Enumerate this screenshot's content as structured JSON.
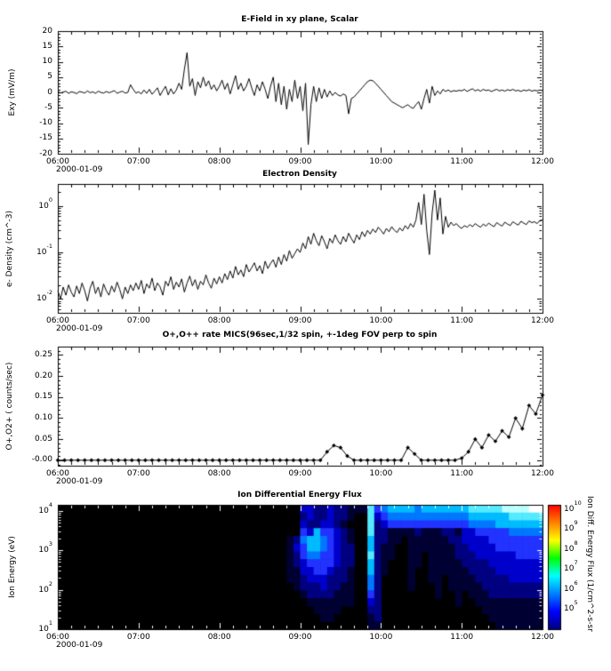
{
  "figure": {
    "background": "#ffffff",
    "axis_color": "#000000",
    "line_color": "#000000"
  },
  "chart_data": [
    {
      "type": "line",
      "title": "E-Field in xy plane, Scalar",
      "ylabel": "Exy (mV/m)",
      "date": "2000-01-09",
      "x_ticks": [
        "06:00",
        "07:00",
        "08:00",
        "09:00",
        "10:00",
        "11:00",
        "12:00"
      ],
      "x_range_minutes": [
        0,
        360
      ],
      "x_step_min": 2,
      "ylim": [
        -20,
        20
      ],
      "y_minor": 1,
      "y_ticks": [
        {
          "label": "20",
          "v": 20
        },
        {
          "label": "15",
          "v": 15
        },
        {
          "label": "10",
          "v": 10
        },
        {
          "label": "5",
          "v": 5
        },
        {
          "label": "0",
          "v": 0
        },
        {
          "label": "-5",
          "v": -5
        },
        {
          "label": "-10",
          "v": -10
        },
        {
          "label": "-15",
          "v": -15
        },
        {
          "label": "-20",
          "v": -20
        }
      ],
      "values": [
        0.3,
        -0.2,
        0.1,
        0.4,
        -0.3,
        0.2,
        0,
        -0.4,
        0.3,
        0.1,
        -0.2,
        0.5,
        -0.1,
        0.2,
        -0.3,
        0.4,
        0,
        -0.2,
        0.3,
        -0.1,
        0.2,
        0.6,
        -0.3,
        0.1,
        0.4,
        -0.2,
        0,
        2.5,
        1,
        -0.2,
        0.2,
        -0.5,
        0.8,
        -0.3,
        1,
        -0.6,
        0.4,
        1.5,
        -1,
        0.6,
        2,
        -0.8,
        1.2,
        -0.5,
        0.8,
        3,
        1,
        7.5,
        13,
        2,
        4.5,
        -1,
        3.5,
        1.5,
        5,
        2,
        3.8,
        1,
        2.5,
        0.5,
        2,
        4,
        1,
        3,
        -0.5,
        2.5,
        5.5,
        1,
        3,
        0.5,
        2,
        4.5,
        1.5,
        -1,
        2.5,
        0.5,
        3.5,
        1,
        -2,
        2,
        5,
        -3,
        3,
        -4,
        2,
        -5.5,
        1,
        -3,
        4,
        -2,
        2,
        -6,
        3,
        -17,
        -4,
        2,
        -3,
        1.5,
        -2,
        1,
        -1.5,
        0.5,
        -1,
        0,
        -0.8,
        -1.2,
        -0.5,
        -1,
        -7,
        -2,
        -1.5,
        -0.5,
        0.5,
        1.5,
        2.5,
        3.5,
        4,
        3.8,
        3,
        2,
        1,
        0,
        -1,
        -2,
        -3,
        -3.5,
        -4,
        -4.5,
        -5,
        -4.5,
        -4,
        -4.8,
        -5.2,
        -4,
        -3,
        -5.5,
        -2,
        1,
        -3.5,
        2,
        -1,
        0.5,
        -0.5,
        1,
        0.3,
        0.8,
        0.2,
        0.6,
        0.4,
        0.7,
        0.5,
        1,
        0.3,
        0.8,
        1.2,
        0.5,
        0.9,
        0.4,
        1,
        0.6,
        0.8,
        0.3,
        0.7,
        1,
        0.5,
        0.8,
        0.4,
        0.9,
        0.6,
        1,
        0.5,
        0.7,
        0.3,
        0.8,
        0.5,
        0.9,
        0.4,
        0.7,
        0.5,
        0.8,
        0.6
      ]
    },
    {
      "type": "line",
      "yscale": "log",
      "title": "Electron Density",
      "ylabel": "e- Density (cm^-3)",
      "date": "2000-01-09",
      "x_ticks": [
        "06:00",
        "07:00",
        "08:00",
        "09:00",
        "10:00",
        "11:00",
        "12:00"
      ],
      "x_range_minutes": [
        0,
        360
      ],
      "x_step_min": 2,
      "ylim": [
        0.005,
        3
      ],
      "y_ticks_exp": [
        -2,
        -1,
        0
      ],
      "values": [
        0.015,
        0.01,
        0.018,
        0.012,
        0.02,
        0.014,
        0.011,
        0.019,
        0.013,
        0.022,
        0.015,
        0.009,
        0.017,
        0.024,
        0.013,
        0.018,
        0.011,
        0.021,
        0.015,
        0.012,
        0.019,
        0.014,
        0.023,
        0.016,
        0.01,
        0.018,
        0.013,
        0.02,
        0.015,
        0.022,
        0.016,
        0.025,
        0.013,
        0.021,
        0.017,
        0.028,
        0.015,
        0.022,
        0.018,
        0.012,
        0.024,
        0.019,
        0.03,
        0.016,
        0.023,
        0.018,
        0.027,
        0.014,
        0.022,
        0.031,
        0.019,
        0.026,
        0.016,
        0.024,
        0.02,
        0.033,
        0.022,
        0.017,
        0.028,
        0.021,
        0.03,
        0.022,
        0.035,
        0.026,
        0.04,
        0.028,
        0.05,
        0.033,
        0.042,
        0.03,
        0.055,
        0.038,
        0.047,
        0.06,
        0.04,
        0.052,
        0.035,
        0.065,
        0.045,
        0.058,
        0.07,
        0.048,
        0.08,
        0.055,
        0.09,
        0.065,
        0.11,
        0.075,
        0.095,
        0.12,
        0.1,
        0.16,
        0.12,
        0.22,
        0.15,
        0.26,
        0.18,
        0.14,
        0.23,
        0.17,
        0.12,
        0.2,
        0.16,
        0.24,
        0.18,
        0.15,
        0.22,
        0.17,
        0.26,
        0.2,
        0.16,
        0.24,
        0.19,
        0.28,
        0.22,
        0.3,
        0.25,
        0.32,
        0.27,
        0.35,
        0.3,
        0.25,
        0.33,
        0.28,
        0.36,
        0.3,
        0.27,
        0.34,
        0.29,
        0.38,
        0.32,
        0.42,
        0.35,
        0.5,
        1.2,
        0.4,
        1.8,
        0.3,
        0.09,
        0.7,
        2.2,
        0.5,
        1.5,
        0.25,
        0.6,
        0.35,
        0.45,
        0.38,
        0.42,
        0.36,
        0.33,
        0.38,
        0.35,
        0.4,
        0.36,
        0.42,
        0.38,
        0.35,
        0.41,
        0.37,
        0.43,
        0.39,
        0.36,
        0.44,
        0.4,
        0.37,
        0.45,
        0.41,
        0.38,
        0.46,
        0.42,
        0.39,
        0.47,
        0.43,
        0.4,
        0.48,
        0.44,
        0.46,
        0.42,
        0.49,
        0.5
      ]
    },
    {
      "type": "line",
      "marker": "diamond",
      "title": "O+,O++ rate MICS(96sec,1/32 spin, +-1deg FOV perp to spin",
      "ylabel": "O+,O2+ ( counts/sec)",
      "date": "2000-01-09",
      "x_ticks": [
        "06:00",
        "07:00",
        "08:00",
        "09:00",
        "10:00",
        "11:00",
        "12:00"
      ],
      "x_range_minutes": [
        0,
        360
      ],
      "x_step_min": 5,
      "ylim": [
        -0.013,
        0.27
      ],
      "y_minor": 0.01,
      "y_ticks": [
        {
          "label": "-0.00",
          "v": 0
        },
        {
          "label": "0.05",
          "v": 0.05
        },
        {
          "label": "0.10",
          "v": 0.1
        },
        {
          "label": "0.15",
          "v": 0.15
        },
        {
          "label": "0.20",
          "v": 0.2
        },
        {
          "label": "0.25",
          "v": 0.25
        }
      ],
      "values": [
        0,
        0,
        0,
        0,
        0,
        0,
        0,
        0,
        0,
        0,
        0,
        0,
        0,
        0,
        0,
        0,
        0,
        0,
        0,
        0,
        0,
        0,
        0,
        0,
        0,
        0,
        0,
        0,
        0,
        0,
        0,
        0,
        0,
        0,
        0,
        0,
        0,
        0,
        0,
        0,
        0.02,
        0.035,
        0.03,
        0.01,
        0,
        0,
        0,
        0,
        0,
        0,
        0,
        0,
        0.03,
        0.015,
        0,
        0,
        0,
        0,
        0,
        0,
        0.005,
        0.02,
        0.05,
        0.03,
        0.06,
        0.045,
        0.07,
        0.055,
        0.1,
        0.075,
        0.13,
        0.11,
        0.155
      ]
    },
    {
      "type": "heatmap",
      "title": "Ion Differential Energy Flux",
      "ylabel": "Ion Energy (eV)",
      "date": "2000-01-09",
      "x_ticks": [
        "06:00",
        "07:00",
        "08:00",
        "09:00",
        "10:00",
        "11:00",
        "12:00"
      ],
      "x_range_minutes": [
        0,
        360
      ],
      "ylim_exp": [
        1,
        4.15
      ],
      "y_ticks_exp": [
        1,
        2,
        3,
        4
      ],
      "time_bin_minutes": 5,
      "energy_rows_top_to_bottom": true,
      "palette": [
        "#000000",
        "#000033",
        "#000080",
        "#0000cc",
        "#2233ff",
        "#0077ff",
        "#00bbff",
        "#55eaff",
        "#bbffff",
        "#ffffff"
      ],
      "rows": [
        "000000000000000000000000000000000000332232211174566665666666677777888899",
        "000000000000000000000000000000000000232232210073455555555555566666677777",
        "000000000000000000000000000000000000322332100072344444444444455556666666",
        "000000000000000000000000000000000000436443210072211112111221334444455555",
        "000000000000000000000000000000000012566543210062211011111122333344444444",
        "000000000000000000000000000000000013466543220062110011111112233334444444",
        "000000000000000000000000000000000012455443220072110011011112223333334444",
        "000000000000000000000000000000000012344443220062100011011111222233333333",
        "000000000000000000000000000000000011334432210062100010011111122223333333",
        "000000000000000000000000000000000011233322210052000010011011112222233333",
        "000000000000000000000000000000000001222322110052000010001011111222222222",
        "000000000000000000000000000000000000122221110042000000001001011122222222",
        "000000000000000000000000000000000000011111110032000000000001001111111111",
        "000000000000000000000000000000000000001111000022000000000000000111111111",
        "000000000000000000000000000000000000000110000012000000000000000011111111",
        "000000000000000000000000000000000000000000000011000000000000000001111111"
      ],
      "colorbar": {
        "title": "Ion Diff. Energy Flux (1/cm^2-s-sr",
        "ticks_exp": [
          5,
          6,
          7,
          8,
          9,
          10
        ],
        "range_exp": [
          4,
          10.2
        ],
        "colors": [
          "#000080",
          "#0000ff",
          "#0080ff",
          "#00ffff",
          "#00ff00",
          "#ffff00",
          "#ff8000",
          "#ff0000"
        ]
      }
    }
  ]
}
